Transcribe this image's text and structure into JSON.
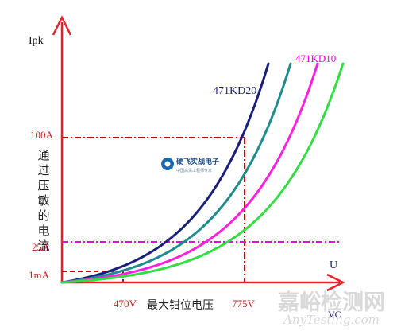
{
  "chart_data": {
    "type": "line",
    "ylabel": "Ipk",
    "ylabel_vertical": "通过压敏的电流",
    "xlabel": "最大钳位电压",
    "xaxis_letter": "U",
    "xaxis_label_right": "VC",
    "y_ticks": [
      "100A",
      "25A",
      "1mA"
    ],
    "x_ticks": [
      "470V",
      "775V"
    ],
    "series": [
      {
        "name": "471KD20",
        "color": "#1a1f7a",
        "curvature": 3.0,
        "vmax": 40
      },
      {
        "name": "",
        "color": "#1e8c8c",
        "curvature": 3.3,
        "vmax": 62
      },
      {
        "name": "",
        "color": "#ff1fe0",
        "curvature": 3.6,
        "vmax": 74
      },
      {
        "name": "471KD10",
        "color": "#33dd44",
        "curvature": 3.9,
        "vmax": 85
      }
    ],
    "reference_lines": [
      {
        "level": "100A",
        "color": "#cc0000",
        "style": "dash-dot"
      },
      {
        "level": "25A",
        "color": "#ee00ee",
        "style": "dash-dot"
      },
      {
        "level": "1mA",
        "color": "#cc0000",
        "style": "dash"
      }
    ],
    "grid": false,
    "legend": "inline labels"
  },
  "watermarks": {
    "logo_text": "硬飞实战电子",
    "logo_subtext": "中国高清工程师专家",
    "brand_cn": "嘉峪检测网",
    "brand_en": "AnyTesting.com"
  },
  "colors": {
    "axis": "#e8202a",
    "tick_text": "#cc2222",
    "label_dark": "#1a1f7a",
    "label_magenta": "#ee00ee"
  }
}
